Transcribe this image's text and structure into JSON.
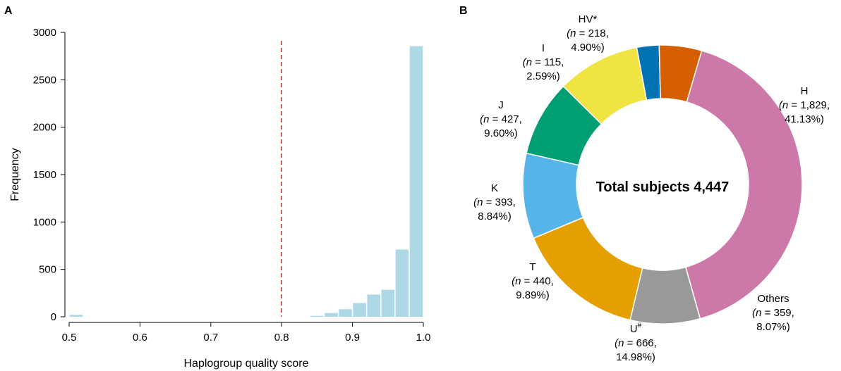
{
  "chart_data": [
    {
      "panel": "A",
      "type": "bar",
      "xlabel": "Haplogroup quality score",
      "ylabel": "Frequency",
      "xlim": [
        0.5,
        1.0
      ],
      "ylim": [
        0,
        3000
      ],
      "xticks": [
        "0.5",
        "0.6",
        "0.7",
        "0.8",
        "0.9",
        "1.0"
      ],
      "yticks": [
        "0",
        "500",
        "1000",
        "1500",
        "2000",
        "2500",
        "3000"
      ],
      "threshold": 0.8,
      "bin_width": 0.02,
      "bar_color": "#add8e6",
      "threshold_color": "#e8282e",
      "bins": [
        {
          "x": 0.51,
          "count": 20
        },
        {
          "x": 0.85,
          "count": 10
        },
        {
          "x": 0.87,
          "count": 40
        },
        {
          "x": 0.89,
          "count": 80
        },
        {
          "x": 0.91,
          "count": 145
        },
        {
          "x": 0.93,
          "count": 235
        },
        {
          "x": 0.95,
          "count": 285
        },
        {
          "x": 0.97,
          "count": 710
        },
        {
          "x": 0.99,
          "count": 2855
        }
      ]
    },
    {
      "panel": "B",
      "type": "pie",
      "center_label": "Total subjects 4,447",
      "slices": [
        {
          "label": "H",
          "n": "1,829",
          "pct": "41.13%",
          "value": 1829,
          "color": "#cc78a8"
        },
        {
          "label": "Others",
          "n": "359",
          "pct": "8.07%",
          "value": 359,
          "color": "#999999"
        },
        {
          "label": "U",
          "sup": "#",
          "n": "666",
          "pct": "14.98%",
          "value": 666,
          "color": "#e69f00"
        },
        {
          "label": "T",
          "n": "440",
          "pct": "9.89%",
          "value": 440,
          "color": "#56b4e9"
        },
        {
          "label": "K",
          "n": "393",
          "pct": "8.84%",
          "value": 393,
          "color": "#009e73"
        },
        {
          "label": "J",
          "n": "427",
          "pct": "9.60%",
          "value": 427,
          "color": "#f0e442"
        },
        {
          "label": "I",
          "n": "115",
          "pct": "2.59%",
          "value": 115,
          "color": "#0072b2"
        },
        {
          "label": "HV*",
          "n": "218",
          "pct": "4.90%",
          "value": 218,
          "color": "#d55e00"
        }
      ]
    }
  ]
}
